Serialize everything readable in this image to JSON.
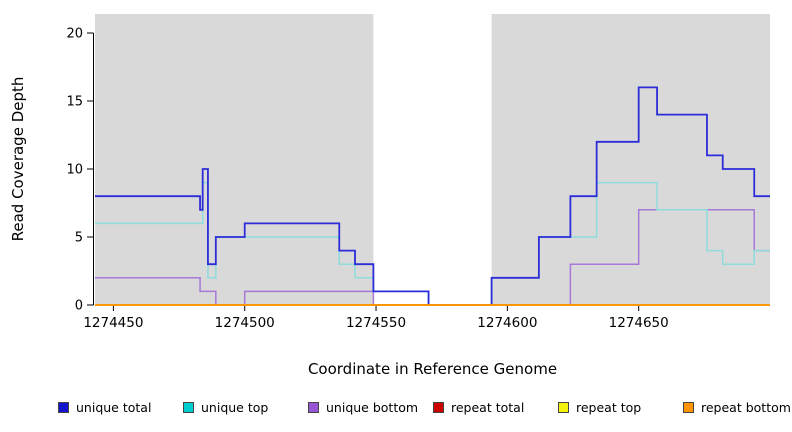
{
  "chart_data": {
    "type": "line",
    "subtype": "step",
    "title": "",
    "xlabel": "Coordinate in Reference Genome",
    "ylabel": "Read Coverage Depth",
    "xlim": [
      1274443,
      1274700
    ],
    "ylim": [
      0,
      21
    ],
    "x_ticks": [
      1274450,
      1274500,
      1274550,
      1274600,
      1274650
    ],
    "y_ticks": [
      0,
      5,
      10,
      15,
      20
    ],
    "grid": false,
    "legend_position": "bottom",
    "shade_color": "#d9d9d9",
    "shaded_regions": [
      [
        1274443,
        1274549
      ],
      [
        1274594,
        1274700
      ]
    ],
    "x_breakpoints": [
      1274443,
      1274483,
      1274484,
      1274486,
      1274489,
      1274500,
      1274536,
      1274542,
      1274549,
      1274570,
      1274594,
      1274612,
      1274624,
      1274634,
      1274650,
      1274657,
      1274676,
      1274682,
      1274694,
      1274700
    ],
    "series": [
      {
        "name": "unique total",
        "color": "#2c2cd8",
        "legend_color": "#1414cc",
        "values": [
          8,
          7,
          10,
          3,
          5,
          6,
          4,
          3,
          1,
          0,
          2,
          5,
          8,
          12,
          16,
          14,
          11,
          10,
          8
        ]
      },
      {
        "name": "unique top",
        "color": "#8edcdc",
        "legend_color": "#00cdcd",
        "values": [
          6,
          6,
          9,
          2,
          5,
          5,
          3,
          2,
          1,
          0,
          2,
          5,
          5,
          9,
          9,
          7,
          4,
          3,
          4
        ]
      },
      {
        "name": "unique bottom",
        "color": "#a678d8",
        "legend_color": "#9655d2",
        "values": [
          2,
          1,
          1,
          1,
          0,
          1,
          1,
          1,
          0,
          0,
          0,
          0,
          3,
          3,
          7,
          7,
          7,
          7,
          4
        ]
      },
      {
        "name": "repeat total",
        "color": "#cc0000",
        "legend_color": "#cc0000",
        "values": [
          0,
          0,
          0,
          0,
          0,
          0,
          0,
          0,
          0,
          0,
          0,
          0,
          0,
          0,
          0,
          0,
          0,
          0,
          0
        ]
      },
      {
        "name": "repeat top",
        "color": "#f2f20c",
        "legend_color": "#f2f20c",
        "values": [
          0,
          0,
          0,
          0,
          0,
          0,
          0,
          0,
          0,
          0,
          0,
          0,
          0,
          0,
          0,
          0,
          0,
          0,
          0
        ]
      },
      {
        "name": "repeat bottom",
        "color": "#ff9400",
        "legend_color": "#ff9400",
        "values": [
          0,
          0,
          0,
          0,
          0,
          0,
          0,
          0,
          0,
          0,
          0,
          0,
          0,
          0,
          0,
          0,
          0,
          0,
          0
        ]
      }
    ]
  }
}
